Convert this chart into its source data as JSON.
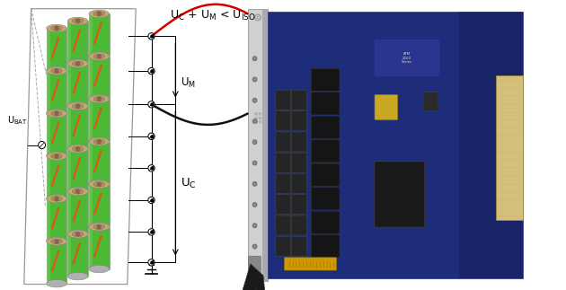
{
  "bg_color": "#ffffff",
  "battery_body": "#4db836",
  "battery_highlight": "#7dd95a",
  "battery_top": "#c8a870",
  "battery_top_inner": "#b09060",
  "battery_bottom": "#b0b0b0",
  "battery_stripe": "#d06010",
  "battery_edge": "#888888",
  "frame_color": "#aaaaaa",
  "wire_red": "#cc0000",
  "wire_black": "#111111",
  "pcb_blue": "#1e2d7a",
  "pcb_silver": "#c8c8c8",
  "pcb_silver_dark": "#999999",
  "pcb_connector": "#d4c07a",
  "pcb_relay": "#1a1a1a",
  "pcb_ic": "#1a1a1a",
  "pcb_gold": "#c8a820",
  "line_color": "#000000",
  "dot_color": "#000000",
  "label_U_BAT": "U$_{\\mathrm{BAT}}$",
  "label_U_C": "U$_{\\mathrm{C}}$",
  "label_U_M": "U$_{\\mathrm{M}}$",
  "label_formula": "U$_{\\mathrm{C}}$ + U$_{\\mathrm{M}}$ < U$_{\\mathrm{ISO}}$",
  "voltmeter_r": 0.01
}
